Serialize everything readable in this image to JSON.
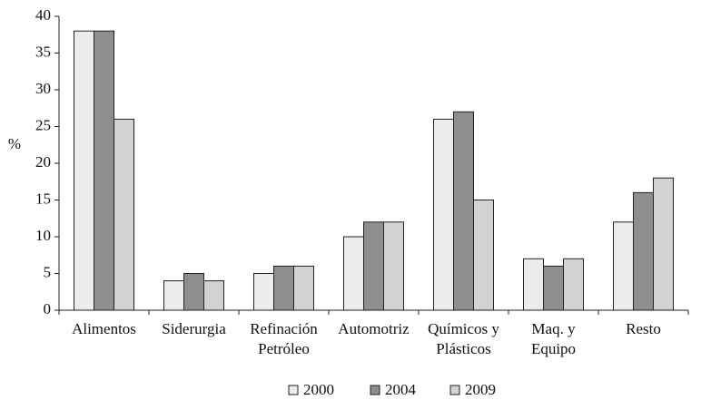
{
  "chart_data": {
    "type": "bar",
    "y_label": "%",
    "categories": [
      "Alimentos",
      "Siderurgia",
      "Refinación\nPetróleo",
      "Automotriz",
      "Químicos y\nPlásticos",
      "Maq. y\nEquipo",
      "Resto"
    ],
    "series": [
      {
        "name": "2000",
        "color": "#ececec",
        "values": [
          38,
          4,
          5,
          10,
          26,
          7,
          12
        ]
      },
      {
        "name": "2004",
        "color": "#8e8e8e",
        "values": [
          38,
          5,
          6,
          12,
          27,
          6,
          16
        ]
      },
      {
        "name": "2009",
        "color": "#d2d2d2",
        "values": [
          26,
          4,
          6,
          12,
          15,
          7,
          18
        ]
      }
    ],
    "ylim": [
      0,
      40
    ],
    "yticks": [
      0,
      5,
      10,
      15,
      20,
      25,
      30,
      35,
      40
    ]
  }
}
